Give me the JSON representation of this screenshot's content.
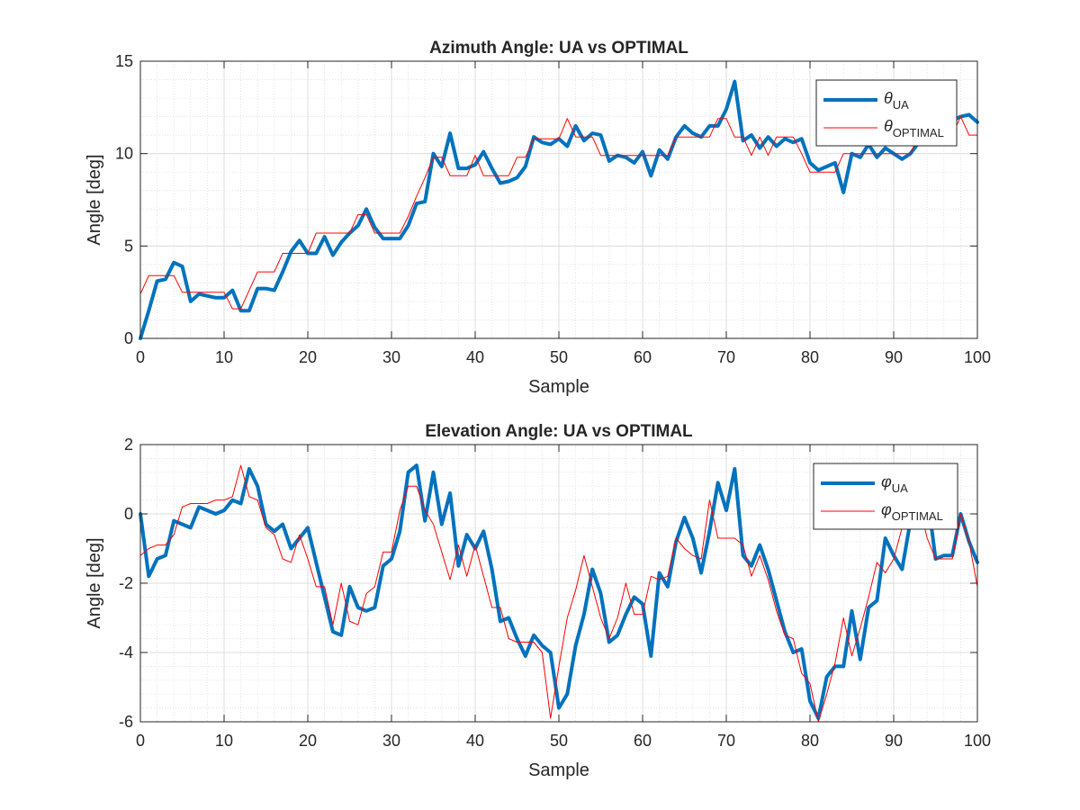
{
  "chart_data": [
    {
      "type": "line",
      "title": "Azimuth Angle: UA vs OPTIMAL",
      "xlabel": "Sample",
      "ylabel": "Angle [deg]",
      "xlim": [
        0,
        100
      ],
      "ylim": [
        0,
        15
      ],
      "xticks": [
        "0",
        "10",
        "20",
        "30",
        "40",
        "50",
        "60",
        "70",
        "80",
        "90",
        "100"
      ],
      "yticks": [
        "0",
        "5",
        "10",
        "15"
      ],
      "grid": true,
      "minor_grid": true,
      "legend_placement": "top-right",
      "legend": [
        {
          "symbol": "θ",
          "subscript": "UA"
        },
        {
          "symbol": "θ",
          "subscript": "OPTIMAL"
        }
      ],
      "series": [
        {
          "color": "#0072BD",
          "width": "thick",
          "x": [
            0,
            1,
            2,
            3,
            4,
            5,
            6,
            7,
            8,
            9,
            10,
            11,
            12,
            13,
            14,
            15,
            16,
            17,
            18,
            19,
            20,
            21,
            22,
            23,
            24,
            25,
            26,
            27,
            28,
            29,
            30,
            31,
            32,
            33,
            34,
            35,
            36,
            37,
            38,
            39,
            40,
            41,
            42,
            43,
            44,
            45,
            46,
            47,
            48,
            49,
            50,
            51,
            52,
            53,
            54,
            55,
            56,
            57,
            58,
            59,
            60,
            61,
            62,
            63,
            64,
            65,
            66,
            67,
            68,
            69,
            70,
            71,
            72,
            73,
            74,
            75,
            76,
            77,
            78,
            79,
            80,
            81,
            82,
            83,
            84,
            85,
            86,
            87,
            88,
            89,
            90,
            91,
            92,
            93,
            94,
            95,
            96,
            97,
            98,
            99,
            100
          ],
          "y": [
            0.0,
            1.5,
            3.1,
            3.2,
            4.1,
            3.9,
            2.0,
            2.4,
            2.3,
            2.2,
            2.2,
            2.6,
            1.5,
            1.5,
            2.7,
            2.7,
            2.6,
            3.6,
            4.7,
            5.3,
            4.6,
            4.6,
            5.5,
            4.5,
            5.2,
            5.7,
            6.1,
            7.0,
            6.0,
            5.4,
            5.4,
            5.4,
            6.1,
            7.3,
            7.4,
            10.0,
            9.3,
            11.1,
            9.2,
            9.2,
            9.4,
            10.1,
            9.2,
            8.4,
            8.5,
            8.7,
            9.3,
            10.9,
            10.6,
            10.5,
            10.8,
            10.4,
            11.5,
            10.7,
            11.1,
            11.0,
            9.6,
            9.9,
            9.8,
            9.5,
            10.1,
            8.8,
            10.2,
            9.7,
            10.9,
            11.5,
            11.1,
            10.9,
            11.5,
            11.5,
            12.4,
            13.9,
            10.7,
            11.0,
            10.3,
            10.9,
            10.4,
            10.8,
            10.6,
            10.8,
            9.5,
            9.1,
            9.3,
            9.5,
            7.9,
            10.0,
            9.8,
            10.5,
            9.8,
            10.3,
            10.0,
            9.7,
            10.0,
            10.6,
            10.8,
            11.5,
            11.8,
            11.8,
            12.0,
            12.1,
            11.7
          ]
        },
        {
          "color": "#FF0000",
          "width": "thin",
          "x": [
            0,
            1,
            2,
            3,
            4,
            5,
            6,
            7,
            8,
            9,
            10,
            11,
            12,
            13,
            14,
            15,
            16,
            17,
            18,
            19,
            20,
            21,
            22,
            23,
            24,
            25,
            26,
            27,
            28,
            29,
            30,
            31,
            32,
            33,
            34,
            35,
            36,
            37,
            38,
            39,
            40,
            41,
            42,
            43,
            44,
            45,
            46,
            47,
            48,
            49,
            50,
            51,
            52,
            53,
            54,
            55,
            56,
            57,
            58,
            59,
            60,
            61,
            62,
            63,
            64,
            65,
            66,
            67,
            68,
            69,
            70,
            71,
            72,
            73,
            74,
            75,
            76,
            77,
            78,
            79,
            80,
            81,
            82,
            83,
            84,
            85,
            86,
            87,
            88,
            89,
            90,
            91,
            92,
            93,
            94,
            95,
            96,
            97,
            98,
            99,
            100
          ],
          "y": [
            2.4,
            3.4,
            3.4,
            3.4,
            3.4,
            2.5,
            2.5,
            2.5,
            2.5,
            2.5,
            2.5,
            1.6,
            1.6,
            2.6,
            3.6,
            3.6,
            3.6,
            4.6,
            4.6,
            4.6,
            4.6,
            5.7,
            5.7,
            5.7,
            5.7,
            5.7,
            6.7,
            6.7,
            5.7,
            5.7,
            5.7,
            5.7,
            6.6,
            7.7,
            8.7,
            9.8,
            9.8,
            8.8,
            8.8,
            8.8,
            9.9,
            8.8,
            8.8,
            8.8,
            8.8,
            9.8,
            9.8,
            10.8,
            10.8,
            10.8,
            10.8,
            11.9,
            10.9,
            10.9,
            10.9,
            9.9,
            9.9,
            9.9,
            9.9,
            9.9,
            9.9,
            9.9,
            9.9,
            9.9,
            10.9,
            10.9,
            10.9,
            10.9,
            10.9,
            11.9,
            11.9,
            10.9,
            10.9,
            9.9,
            10.9,
            9.9,
            10.9,
            10.9,
            10.9,
            10.0,
            9.0,
            9.0,
            9.0,
            9.0,
            10.0,
            10.0,
            10.0,
            10.0,
            10.0,
            10.0,
            10.0,
            10.0,
            10.0,
            11.0,
            11.0,
            11.0,
            11.0,
            11.0,
            12.0,
            11.0,
            11.0
          ]
        }
      ]
    },
    {
      "type": "line",
      "title": "Elevation Angle: UA vs OPTIMAL",
      "xlabel": "Sample",
      "ylabel": "Angle [deg]",
      "xlim": [
        0,
        100
      ],
      "ylim": [
        -6,
        2
      ],
      "xticks": [
        "0",
        "10",
        "20",
        "30",
        "40",
        "50",
        "60",
        "70",
        "80",
        "90",
        "100"
      ],
      "yticks": [
        "-6",
        "-4",
        "-2",
        "0",
        "2"
      ],
      "grid": true,
      "minor_grid": true,
      "legend_placement": "top-right",
      "legend": [
        {
          "symbol": "φ",
          "subscript": "UA"
        },
        {
          "symbol": "φ",
          "subscript": "OPTIMAL"
        }
      ],
      "series": [
        {
          "color": "#0072BD",
          "width": "thick",
          "x": [
            0,
            1,
            2,
            3,
            4,
            5,
            6,
            7,
            8,
            9,
            10,
            11,
            12,
            13,
            14,
            15,
            16,
            17,
            18,
            19,
            20,
            21,
            22,
            23,
            24,
            25,
            26,
            27,
            28,
            29,
            30,
            31,
            32,
            33,
            34,
            35,
            36,
            37,
            38,
            39,
            40,
            41,
            42,
            43,
            44,
            45,
            46,
            47,
            48,
            49,
            50,
            51,
            52,
            53,
            54,
            55,
            56,
            57,
            58,
            59,
            60,
            61,
            62,
            63,
            64,
            65,
            66,
            67,
            68,
            69,
            70,
            71,
            72,
            73,
            74,
            75,
            76,
            77,
            78,
            79,
            80,
            81,
            82,
            83,
            84,
            85,
            86,
            87,
            88,
            89,
            90,
            91,
            92,
            93,
            94,
            95,
            96,
            97,
            98,
            99,
            100
          ],
          "y": [
            0.0,
            -1.8,
            -1.3,
            -1.2,
            -0.2,
            -0.3,
            -0.4,
            0.2,
            0.1,
            0.0,
            0.1,
            0.4,
            0.3,
            1.3,
            0.8,
            -0.3,
            -0.5,
            -0.3,
            -1.0,
            -0.7,
            -0.4,
            -1.4,
            -2.4,
            -3.4,
            -3.5,
            -2.1,
            -2.7,
            -2.8,
            -2.7,
            -1.5,
            -1.3,
            -0.5,
            1.2,
            1.4,
            -0.2,
            1.2,
            -0.3,
            0.6,
            -1.5,
            -0.6,
            -1.0,
            -0.5,
            -1.6,
            -3.1,
            -3.0,
            -3.6,
            -4.1,
            -3.5,
            -3.8,
            -4.0,
            -5.6,
            -5.2,
            -3.8,
            -2.9,
            -1.6,
            -2.3,
            -3.7,
            -3.5,
            -2.9,
            -2.4,
            -2.6,
            -4.1,
            -1.7,
            -2.1,
            -0.8,
            -0.1,
            -0.7,
            -1.7,
            -0.5,
            0.9,
            0.1,
            1.3,
            -1.2,
            -1.5,
            -0.9,
            -1.6,
            -2.5,
            -3.4,
            -4.0,
            -3.9,
            -5.4,
            -5.9,
            -4.7,
            -4.4,
            -4.4,
            -2.8,
            -4.2,
            -2.7,
            -2.5,
            -0.7,
            -1.2,
            -1.6,
            -0.2,
            0.5,
            0.6,
            -1.3,
            -1.2,
            -1.2,
            0.0,
            -0.8,
            -1.4
          ]
        },
        {
          "color": "#FF0000",
          "width": "thin",
          "x": [
            0,
            1,
            2,
            3,
            4,
            5,
            6,
            7,
            8,
            9,
            10,
            11,
            12,
            13,
            14,
            15,
            16,
            17,
            18,
            19,
            20,
            21,
            22,
            23,
            24,
            25,
            26,
            27,
            28,
            29,
            30,
            31,
            32,
            33,
            34,
            35,
            36,
            37,
            38,
            39,
            40,
            41,
            42,
            43,
            44,
            45,
            46,
            47,
            48,
            49,
            50,
            51,
            52,
            53,
            54,
            55,
            56,
            57,
            58,
            59,
            60,
            61,
            62,
            63,
            64,
            65,
            66,
            67,
            68,
            69,
            70,
            71,
            72,
            73,
            74,
            75,
            76,
            77,
            78,
            79,
            80,
            81,
            82,
            83,
            84,
            85,
            86,
            87,
            88,
            89,
            90,
            91,
            92,
            93,
            94,
            95,
            96,
            97,
            98,
            99,
            100
          ],
          "y": [
            -1.2,
            -1.0,
            -0.9,
            -0.9,
            -0.6,
            0.2,
            0.3,
            0.3,
            0.3,
            0.4,
            0.4,
            0.5,
            1.4,
            0.5,
            0.4,
            -0.4,
            -0.6,
            -1.3,
            -1.4,
            -0.6,
            -1.3,
            -2.1,
            -2.1,
            -3.2,
            -2.0,
            -3.1,
            -3.2,
            -2.3,
            -2.1,
            -1.1,
            -1.1,
            0.1,
            0.8,
            0.8,
            0.1,
            -0.3,
            -1.1,
            -1.9,
            -0.9,
            -1.8,
            -0.9,
            -1.8,
            -2.7,
            -2.7,
            -3.6,
            -3.7,
            -3.7,
            -3.7,
            -4.0,
            -5.9,
            -4.4,
            -3.0,
            -2.2,
            -1.2,
            -2.1,
            -3.0,
            -3.6,
            -3.0,
            -2.0,
            -2.9,
            -2.9,
            -1.8,
            -1.9,
            -1.8,
            -0.7,
            -1.0,
            -1.2,
            -1.3,
            0.4,
            -0.7,
            -0.7,
            -0.7,
            -0.9,
            -1.8,
            -1.2,
            -1.9,
            -2.8,
            -3.5,
            -3.6,
            -4.6,
            -4.9,
            -6.0,
            -5.2,
            -4.3,
            -3.0,
            -4.1,
            -3.3,
            -2.4,
            -1.4,
            -1.7,
            -1.3,
            -0.4,
            0.4,
            0.3,
            -0.7,
            -1.3,
            -1.3,
            -1.3,
            0.0,
            -0.8,
            -2.1
          ]
        }
      ]
    }
  ]
}
